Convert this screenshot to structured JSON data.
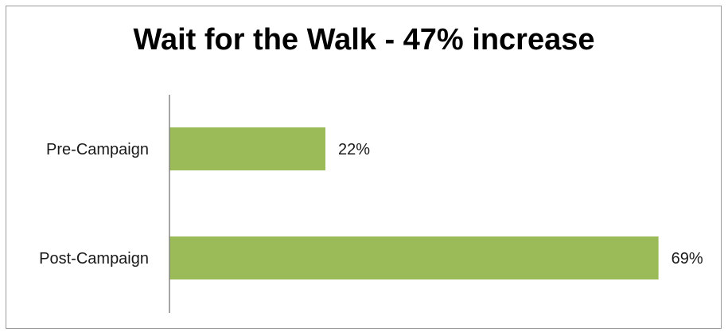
{
  "chart_data": {
    "type": "bar",
    "orientation": "horizontal",
    "title": "Wait for the Walk - 47% increase",
    "categories": [
      "Pre-Campaign",
      "Post-Campaign"
    ],
    "values": [
      22,
      69
    ],
    "data_labels": [
      "22%",
      "69%"
    ],
    "xlim": [
      0,
      76
    ],
    "grid": false,
    "legend": "none",
    "bar_color": "#9bbb59",
    "axis_color": "#868686"
  }
}
